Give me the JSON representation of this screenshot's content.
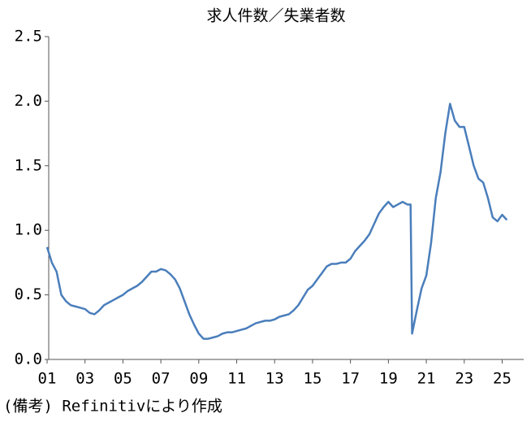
{
  "chart_data": {
    "type": "line",
    "title": "求人件数／失業者数",
    "note": "(備考) Refinitivにより作成",
    "series": [
      {
        "name": "求人件数／失業者数",
        "color": "#4a7ebb",
        "x": [
          1,
          1.25,
          1.5,
          1.75,
          2,
          2.25,
          2.5,
          2.75,
          3,
          3.25,
          3.5,
          3.75,
          4,
          4.25,
          4.5,
          4.75,
          5,
          5.25,
          5.5,
          5.75,
          6,
          6.25,
          6.5,
          6.75,
          7,
          7.25,
          7.5,
          7.75,
          8,
          8.25,
          8.5,
          8.75,
          9,
          9.25,
          9.5,
          9.75,
          10,
          10.25,
          10.5,
          10.75,
          11,
          11.25,
          11.5,
          11.75,
          12,
          12.25,
          12.5,
          12.75,
          13,
          13.25,
          13.5,
          13.75,
          14,
          14.25,
          14.5,
          14.75,
          15,
          15.25,
          15.5,
          15.75,
          16,
          16.25,
          16.5,
          16.75,
          17,
          17.25,
          17.5,
          17.75,
          18,
          18.25,
          18.5,
          18.75,
          19,
          19.25,
          19.5,
          19.75,
          20,
          20.17,
          20.25,
          20.5,
          20.75,
          21,
          21.25,
          21.5,
          21.75,
          22,
          22.25,
          22.5,
          22.75,
          23,
          23.25,
          23.5,
          23.75,
          24,
          24.25,
          24.5,
          24.75,
          25,
          25.25
        ],
        "values": [
          0.87,
          0.75,
          0.68,
          0.5,
          0.45,
          0.42,
          0.41,
          0.4,
          0.39,
          0.36,
          0.35,
          0.38,
          0.42,
          0.44,
          0.46,
          0.48,
          0.5,
          0.53,
          0.55,
          0.57,
          0.6,
          0.64,
          0.68,
          0.68,
          0.7,
          0.69,
          0.66,
          0.62,
          0.55,
          0.45,
          0.35,
          0.27,
          0.2,
          0.16,
          0.16,
          0.17,
          0.18,
          0.2,
          0.21,
          0.21,
          0.22,
          0.23,
          0.24,
          0.26,
          0.28,
          0.29,
          0.3,
          0.3,
          0.31,
          0.33,
          0.34,
          0.35,
          0.38,
          0.42,
          0.48,
          0.54,
          0.57,
          0.62,
          0.67,
          0.72,
          0.74,
          0.74,
          0.75,
          0.75,
          0.78,
          0.84,
          0.88,
          0.92,
          0.97,
          1.05,
          1.13,
          1.18,
          1.22,
          1.18,
          1.2,
          1.22,
          1.2,
          1.2,
          0.2,
          0.38,
          0.55,
          0.65,
          0.9,
          1.25,
          1.45,
          1.75,
          1.98,
          1.85,
          1.8,
          1.8,
          1.65,
          1.5,
          1.4,
          1.37,
          1.25,
          1.1,
          1.07,
          1.12,
          1.08
        ]
      }
    ],
    "xlim": [
      1,
      26.05
    ],
    "xticks": [
      {
        "value": 1,
        "label": "01"
      },
      {
        "value": 3,
        "label": "03"
      },
      {
        "value": 5,
        "label": "05"
      },
      {
        "value": 7,
        "label": "07"
      },
      {
        "value": 9,
        "label": "09"
      },
      11,
      13,
      15,
      17,
      19,
      21,
      23,
      25
    ],
    "ylim": [
      0,
      2.5
    ],
    "yticks": [
      {
        "value": 0,
        "label": "0.0"
      },
      0.5,
      {
        "value": 1,
        "label": "1.0"
      },
      1.5,
      {
        "value": 2,
        "label": "2.0"
      },
      2.5
    ]
  }
}
